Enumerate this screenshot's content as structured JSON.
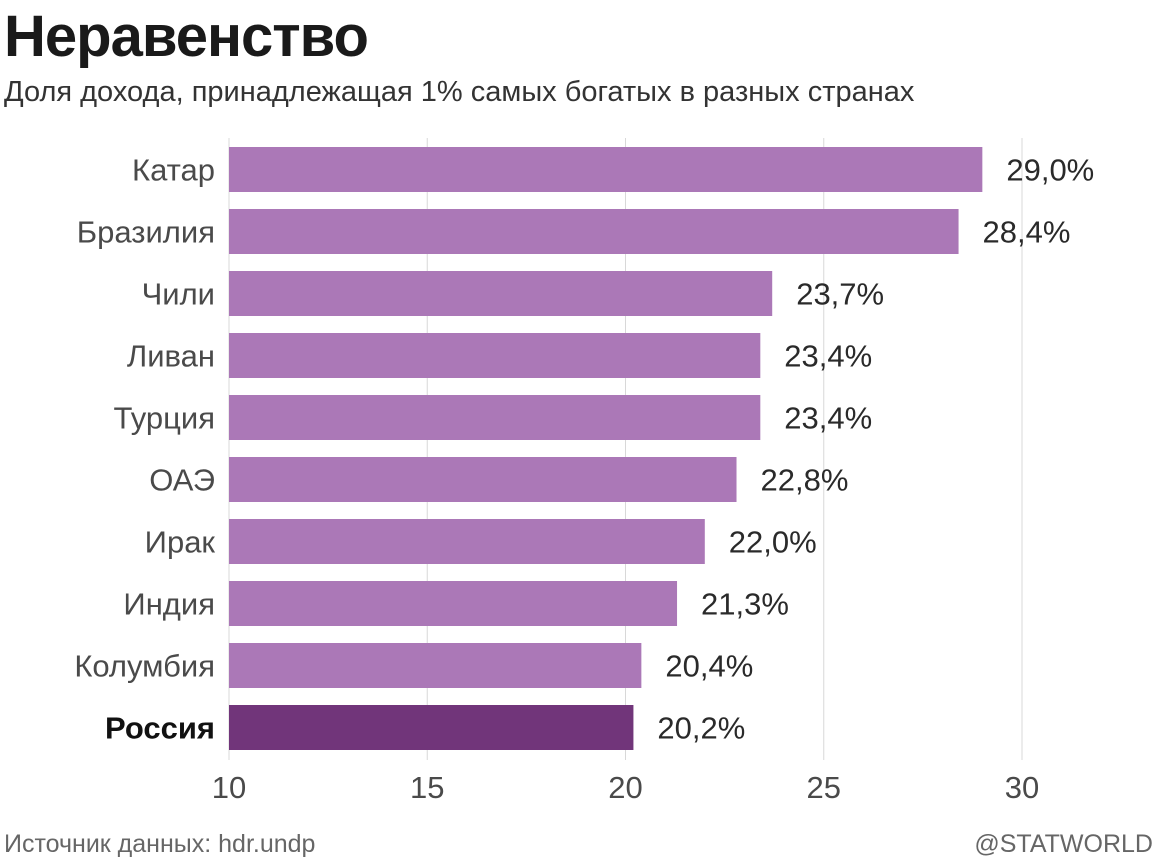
{
  "chart_data": {
    "type": "bar",
    "orientation": "horizontal",
    "title": "Неравенство",
    "subtitle": "Доля дохода, принадлежащая 1% самых богатых в разных странах",
    "categories": [
      "Катар",
      "Бразилия",
      "Чили",
      "Ливан",
      "Турция",
      "ОАЭ",
      "Ирак",
      "Индия",
      "Колумбия",
      "Россия"
    ],
    "values": [
      29.0,
      28.4,
      23.7,
      23.4,
      23.4,
      22.8,
      22.0,
      21.3,
      20.4,
      20.2
    ],
    "value_labels": [
      "29,0%",
      "28,4%",
      "23,7%",
      "23,4%",
      "23,4%",
      "22,8%",
      "22,0%",
      "21,3%",
      "20,4%",
      "20,2%"
    ],
    "highlight_category": "Россия",
    "xlim": [
      10,
      30
    ],
    "xticks": [
      10,
      15,
      20,
      25,
      30
    ],
    "xtick_labels": [
      "10",
      "15",
      "20",
      "25",
      "30"
    ],
    "grid": true,
    "colors": {
      "bar": "#ab78b7",
      "highlight": "#71357a",
      "grid": "#d8d8d8"
    }
  },
  "footer": {
    "source": "Источник данных: hdr.undp",
    "brand": "@STATWORLD"
  }
}
